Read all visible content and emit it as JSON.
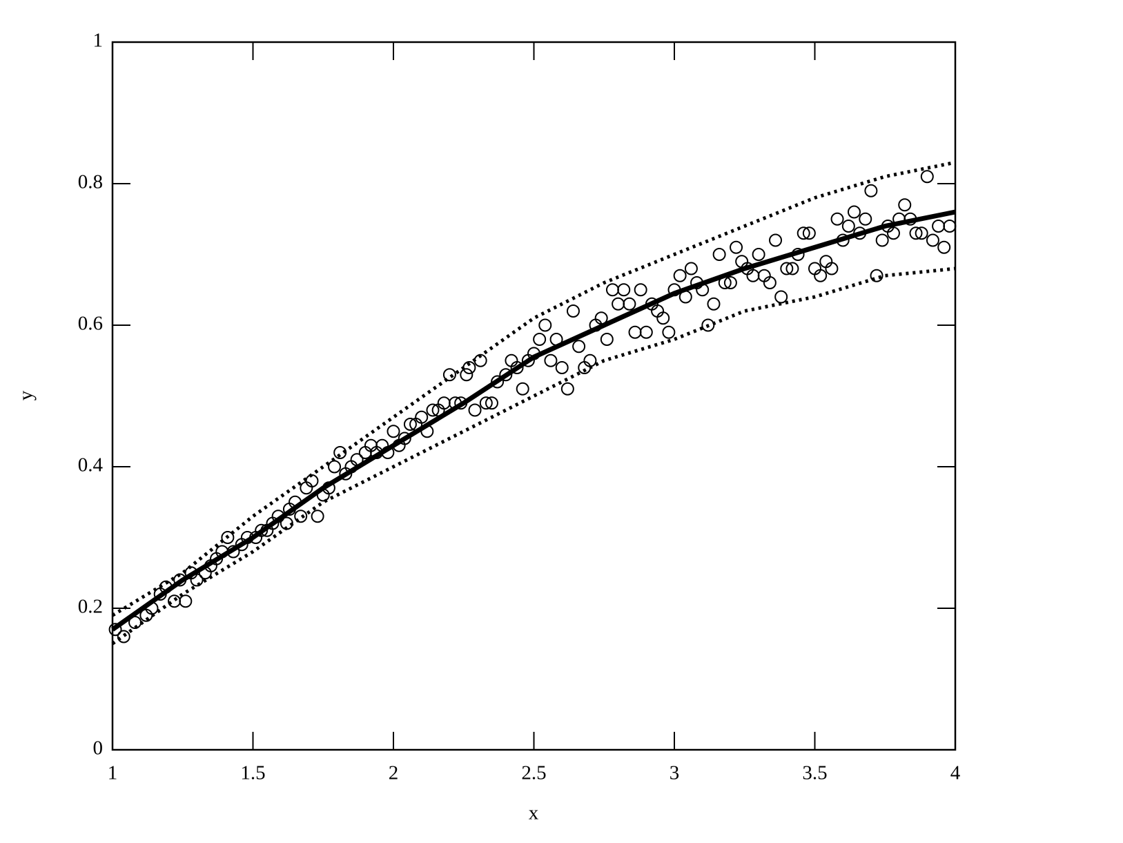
{
  "chart_data": {
    "type": "scatter",
    "x_label": "x",
    "y_label": "y",
    "xlim": [
      1,
      4
    ],
    "ylim": [
      0,
      1
    ],
    "xticks": [
      1,
      1.5,
      2,
      2.5,
      3,
      3.5,
      4
    ],
    "yticks": [
      0,
      0.2,
      0.4,
      0.6,
      0.8,
      1
    ],
    "series": [
      {
        "style": "circle",
        "color": "#000000",
        "x": [
          1.01,
          1.04,
          1.08,
          1.12,
          1.14,
          1.17,
          1.19,
          1.22,
          1.24,
          1.26,
          1.28,
          1.3,
          1.33,
          1.35,
          1.37,
          1.39,
          1.41,
          1.43,
          1.46,
          1.48,
          1.51,
          1.53,
          1.55,
          1.57,
          1.59,
          1.62,
          1.63,
          1.65,
          1.67,
          1.69,
          1.71,
          1.73,
          1.75,
          1.77,
          1.79,
          1.81,
          1.83,
          1.85,
          1.87,
          1.9,
          1.92,
          1.94,
          1.96,
          1.98,
          2.0,
          2.02,
          2.04,
          2.06,
          2.08,
          2.1,
          2.12,
          2.14,
          2.16,
          2.18,
          2.2,
          2.22,
          2.24,
          2.26,
          2.27,
          2.29,
          2.31,
          2.33,
          2.35,
          2.37,
          2.4,
          2.42,
          2.44,
          2.46,
          2.48,
          2.5,
          2.52,
          2.54,
          2.56,
          2.58,
          2.6,
          2.62,
          2.64,
          2.66,
          2.68,
          2.7,
          2.72,
          2.74,
          2.76,
          2.78,
          2.8,
          2.82,
          2.84,
          2.86,
          2.88,
          2.9,
          2.92,
          2.94,
          2.96,
          2.98,
          3.0,
          3.02,
          3.04,
          3.06,
          3.08,
          3.1,
          3.12,
          3.14,
          3.16,
          3.18,
          3.2,
          3.22,
          3.24,
          3.26,
          3.28,
          3.3,
          3.32,
          3.34,
          3.36,
          3.38,
          3.4,
          3.42,
          3.44,
          3.46,
          3.48,
          3.5,
          3.52,
          3.54,
          3.56,
          3.58,
          3.6,
          3.62,
          3.64,
          3.66,
          3.68,
          3.7,
          3.72,
          3.74,
          3.76,
          3.78,
          3.8,
          3.82,
          3.84,
          3.86,
          3.88,
          3.9,
          3.92,
          3.94,
          3.96,
          3.98
        ],
        "values": [
          0.17,
          0.16,
          0.18,
          0.19,
          0.2,
          0.22,
          0.23,
          0.21,
          0.24,
          0.21,
          0.25,
          0.24,
          0.25,
          0.26,
          0.27,
          0.28,
          0.3,
          0.28,
          0.29,
          0.3,
          0.3,
          0.31,
          0.31,
          0.32,
          0.33,
          0.32,
          0.34,
          0.35,
          0.33,
          0.37,
          0.38,
          0.33,
          0.36,
          0.37,
          0.4,
          0.42,
          0.39,
          0.4,
          0.41,
          0.42,
          0.43,
          0.42,
          0.43,
          0.42,
          0.45,
          0.43,
          0.44,
          0.46,
          0.46,
          0.47,
          0.45,
          0.48,
          0.48,
          0.49,
          0.53,
          0.49,
          0.49,
          0.53,
          0.54,
          0.48,
          0.55,
          0.49,
          0.49,
          0.52,
          0.53,
          0.55,
          0.54,
          0.51,
          0.55,
          0.56,
          0.58,
          0.6,
          0.55,
          0.58,
          0.54,
          0.51,
          0.62,
          0.57,
          0.54,
          0.55,
          0.6,
          0.61,
          0.58,
          0.65,
          0.63,
          0.65,
          0.63,
          0.59,
          0.65,
          0.59,
          0.63,
          0.62,
          0.61,
          0.59,
          0.65,
          0.67,
          0.64,
          0.68,
          0.66,
          0.65,
          0.6,
          0.63,
          0.7,
          0.66,
          0.66,
          0.71,
          0.69,
          0.68,
          0.67,
          0.7,
          0.67,
          0.66,
          0.72,
          0.64,
          0.68,
          0.68,
          0.7,
          0.73,
          0.73,
          0.68,
          0.67,
          0.69,
          0.68,
          0.75,
          0.72,
          0.74,
          0.76,
          0.73,
          0.75,
          0.79,
          0.67,
          0.72,
          0.74,
          0.73,
          0.75,
          0.77,
          0.75,
          0.73,
          0.73,
          0.81,
          0.72,
          0.74,
          0.71,
          0.74
        ]
      },
      {
        "style": "solid",
        "color": "#000000",
        "x": [
          1,
          1.25,
          1.5,
          1.75,
          2,
          2.25,
          2.5,
          2.75,
          3,
          3.25,
          3.5,
          3.75,
          4
        ],
        "values": [
          0.17,
          0.24,
          0.3,
          0.37,
          0.43,
          0.49,
          0.555,
          0.6,
          0.645,
          0.68,
          0.71,
          0.74,
          0.76
        ]
      },
      {
        "style": "dotted",
        "color": "#000000",
        "x": [
          1,
          1.25,
          1.5,
          1.75,
          2,
          2.25,
          2.5,
          2.75,
          3,
          3.25,
          3.5,
          3.75,
          4
        ],
        "values": [
          0.19,
          0.25,
          0.33,
          0.4,
          0.47,
          0.54,
          0.61,
          0.66,
          0.7,
          0.74,
          0.78,
          0.81,
          0.83
        ]
      },
      {
        "style": "dotted",
        "color": "#000000",
        "x": [
          1,
          1.25,
          1.5,
          1.75,
          2,
          2.25,
          2.5,
          2.75,
          3,
          3.25,
          3.5,
          3.75,
          4
        ],
        "values": [
          0.15,
          0.22,
          0.28,
          0.35,
          0.4,
          0.45,
          0.5,
          0.55,
          0.58,
          0.62,
          0.64,
          0.67,
          0.68
        ]
      }
    ]
  }
}
